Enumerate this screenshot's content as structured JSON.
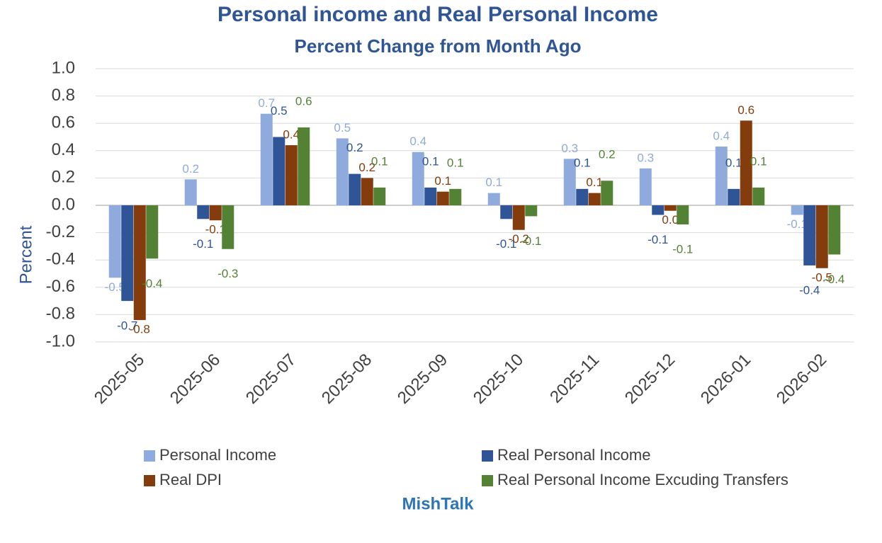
{
  "chart_data": {
    "type": "bar",
    "title": "Personal income and Real Personal Income",
    "subtitle": "Percent Change from Month Ago",
    "y_label": "Percent",
    "source": "MishTalk",
    "categories": [
      "2025-05",
      "2025-06",
      "2025-07",
      "2025-08",
      "2025-09",
      "2025-10",
      "2025-11",
      "2025-12",
      "2026-01",
      "2026-02"
    ],
    "series": [
      {
        "name": "Personal Income",
        "color": "#8faadc",
        "values": [
          -0.53,
          0.19,
          0.67,
          0.49,
          0.39,
          0.09,
          0.34,
          0.27,
          0.43,
          -0.07
        ],
        "value_labels": [
          "-0.5",
          "0.2",
          "0.7",
          "0.5",
          "0.4",
          "0.1",
          "0.3",
          "0.3",
          "0.4",
          "-0.1"
        ]
      },
      {
        "name": "Real Personal Income",
        "color": "#2f5597",
        "values": [
          -0.7,
          -0.1,
          0.5,
          0.23,
          0.13,
          -0.1,
          0.12,
          -0.07,
          0.12,
          -0.44
        ],
        "value_labels": [
          "-0.7",
          "-0.1",
          "0.5",
          "0.2",
          "0.1",
          "-0.1",
          "0.1",
          "-0.1",
          "0.1",
          "-0.4"
        ]
      },
      {
        "name": "Real DPI",
        "color": "#843c0c",
        "values": [
          -0.84,
          -0.11,
          0.44,
          0.2,
          0.1,
          -0.18,
          0.09,
          -0.04,
          0.62,
          -0.46
        ],
        "value_labels": [
          "-0.8",
          "-0.1",
          "0.4",
          "0.2",
          "0.1",
          "-0.2",
          "0.1",
          "0.0",
          "0.6",
          "-0.5"
        ]
      },
      {
        "name": "Real Personal Income Excuding Transfers",
        "color": "#548235",
        "values": [
          -0.39,
          -0.32,
          0.57,
          0.13,
          0.12,
          -0.08,
          0.18,
          -0.14,
          0.13,
          -0.36
        ],
        "value_labels": [
          "-0.4",
          "-0.3",
          "0.6",
          "0.1",
          "0.1",
          "-0.1",
          "0.2",
          "-0.1",
          "0.1",
          "-0.4"
        ]
      }
    ],
    "ylim": [
      -1,
      1
    ],
    "yticks": [
      {
        "value": -1,
        "label": "-1.0"
      },
      -0.8,
      -0.6,
      -0.4,
      -0.2,
      {
        "value": 0,
        "label": "0.0"
      },
      0.2,
      0.4,
      0.6,
      0.8,
      {
        "value": 1,
        "label": "1.0"
      }
    ],
    "grid": true
  }
}
